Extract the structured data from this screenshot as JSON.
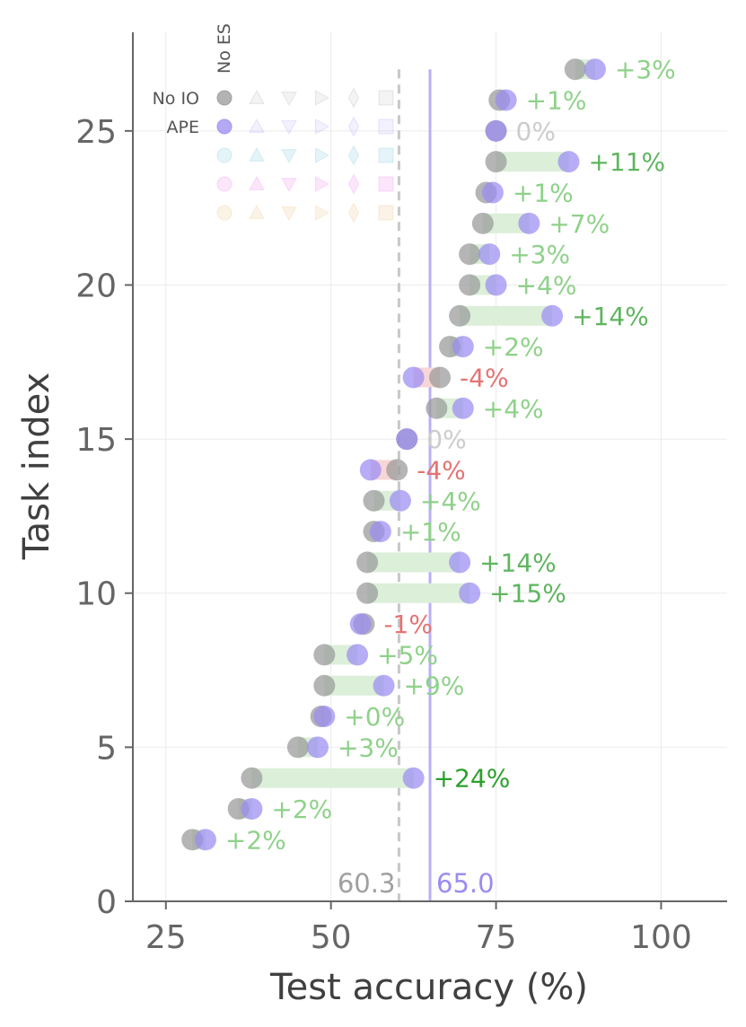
{
  "chart_data": {
    "type": "scatter",
    "xlabel": "Test accuracy (%)",
    "ylabel": "Task index",
    "xlim": [
      20,
      110
    ],
    "ylim": [
      0,
      28.2
    ],
    "xticks": [
      25,
      50,
      75,
      100
    ],
    "yticks": [
      0,
      5,
      10,
      15,
      20,
      25
    ],
    "grid": true,
    "series": [
      {
        "name": "No IO",
        "color": "#999999"
      },
      {
        "name": "APE",
        "color": "#9b8cf2"
      }
    ],
    "tasks": [
      {
        "index": 2,
        "no_io": 29,
        "ape": 31,
        "delta_label": "+2%"
      },
      {
        "index": 3,
        "no_io": 36,
        "ape": 38,
        "delta_label": "+2%"
      },
      {
        "index": 4,
        "no_io": 38,
        "ape": 62.5,
        "delta_label": "+24%"
      },
      {
        "index": 5,
        "no_io": 45,
        "ape": 48,
        "delta_label": "+3%"
      },
      {
        "index": 6,
        "no_io": 48.5,
        "ape": 49,
        "delta_label": "+0%"
      },
      {
        "index": 7,
        "no_io": 49,
        "ape": 58,
        "delta_label": "+9%"
      },
      {
        "index": 8,
        "no_io": 49,
        "ape": 54,
        "delta_label": "+5%"
      },
      {
        "index": 9,
        "no_io": 55,
        "ape": 54.5,
        "delta_label": "-1%"
      },
      {
        "index": 10,
        "no_io": 55.5,
        "ape": 71,
        "delta_label": "+15%"
      },
      {
        "index": 11,
        "no_io": 55.5,
        "ape": 69.5,
        "delta_label": "+14%"
      },
      {
        "index": 12,
        "no_io": 56.5,
        "ape": 57.5,
        "delta_label": "+1%"
      },
      {
        "index": 13,
        "no_io": 56.5,
        "ape": 60.5,
        "delta_label": "+4%"
      },
      {
        "index": 14,
        "no_io": 60,
        "ape": 56,
        "delta_label": "-4%"
      },
      {
        "index": 15,
        "no_io": 61.5,
        "ape": 61.5,
        "delta_label": "0%"
      },
      {
        "index": 16,
        "no_io": 66,
        "ape": 70,
        "delta_label": "+4%"
      },
      {
        "index": 17,
        "no_io": 66.5,
        "ape": 62.5,
        "delta_label": "-4%"
      },
      {
        "index": 18,
        "no_io": 68,
        "ape": 70,
        "delta_label": "+2%"
      },
      {
        "index": 19,
        "no_io": 69.5,
        "ape": 83.5,
        "delta_label": "+14%"
      },
      {
        "index": 20,
        "no_io": 71,
        "ape": 75,
        "delta_label": "+4%"
      },
      {
        "index": 21,
        "no_io": 71,
        "ape": 74,
        "delta_label": "+3%"
      },
      {
        "index": 22,
        "no_io": 73,
        "ape": 80,
        "delta_label": "+7%"
      },
      {
        "index": 23,
        "no_io": 73.5,
        "ape": 74.5,
        "delta_label": "+1%"
      },
      {
        "index": 24,
        "no_io": 75,
        "ape": 86,
        "delta_label": "+11%"
      },
      {
        "index": 25,
        "no_io": 75,
        "ape": 75,
        "delta_label": "0%"
      },
      {
        "index": 26,
        "no_io": 75.5,
        "ape": 76.5,
        "delta_label": "+1%"
      },
      {
        "index": 27,
        "no_io": 87,
        "ape": 90,
        "delta_label": "+3%"
      }
    ],
    "reference_lines": [
      {
        "series": "No IO",
        "value": 60.3,
        "label": "60.3",
        "style": "dashed",
        "color": "#c8c8c8",
        "label_color": "#a0a0a0"
      },
      {
        "series": "APE",
        "value": 65.0,
        "label": "65.0",
        "style": "solid",
        "color": "#b9b0f5",
        "label_color": "#9b8cf2"
      }
    ],
    "colors": {
      "no_io": "#999999",
      "ape": "#9b8cf2",
      "gain_bar": "#dcefd9",
      "loss_bar": "#f7d6d6",
      "gain_strong": "#2ca02c",
      "gain_light": "#8fd18a",
      "loss": "#e57373",
      "neutral": "#cccccc",
      "axis": "#666666",
      "grid": "#ebebeb"
    },
    "legend": {
      "placement": "top-left",
      "column_header": "No ES",
      "row_labels": [
        "No IO",
        "APE"
      ],
      "faded_row_colors": [
        "#9fd8e6",
        "#f2a6ee",
        "#f1d3a6"
      ],
      "markers": [
        "circle",
        "triangle-up",
        "triangle-down",
        "triangle-right",
        "diamond",
        "square"
      ]
    }
  }
}
